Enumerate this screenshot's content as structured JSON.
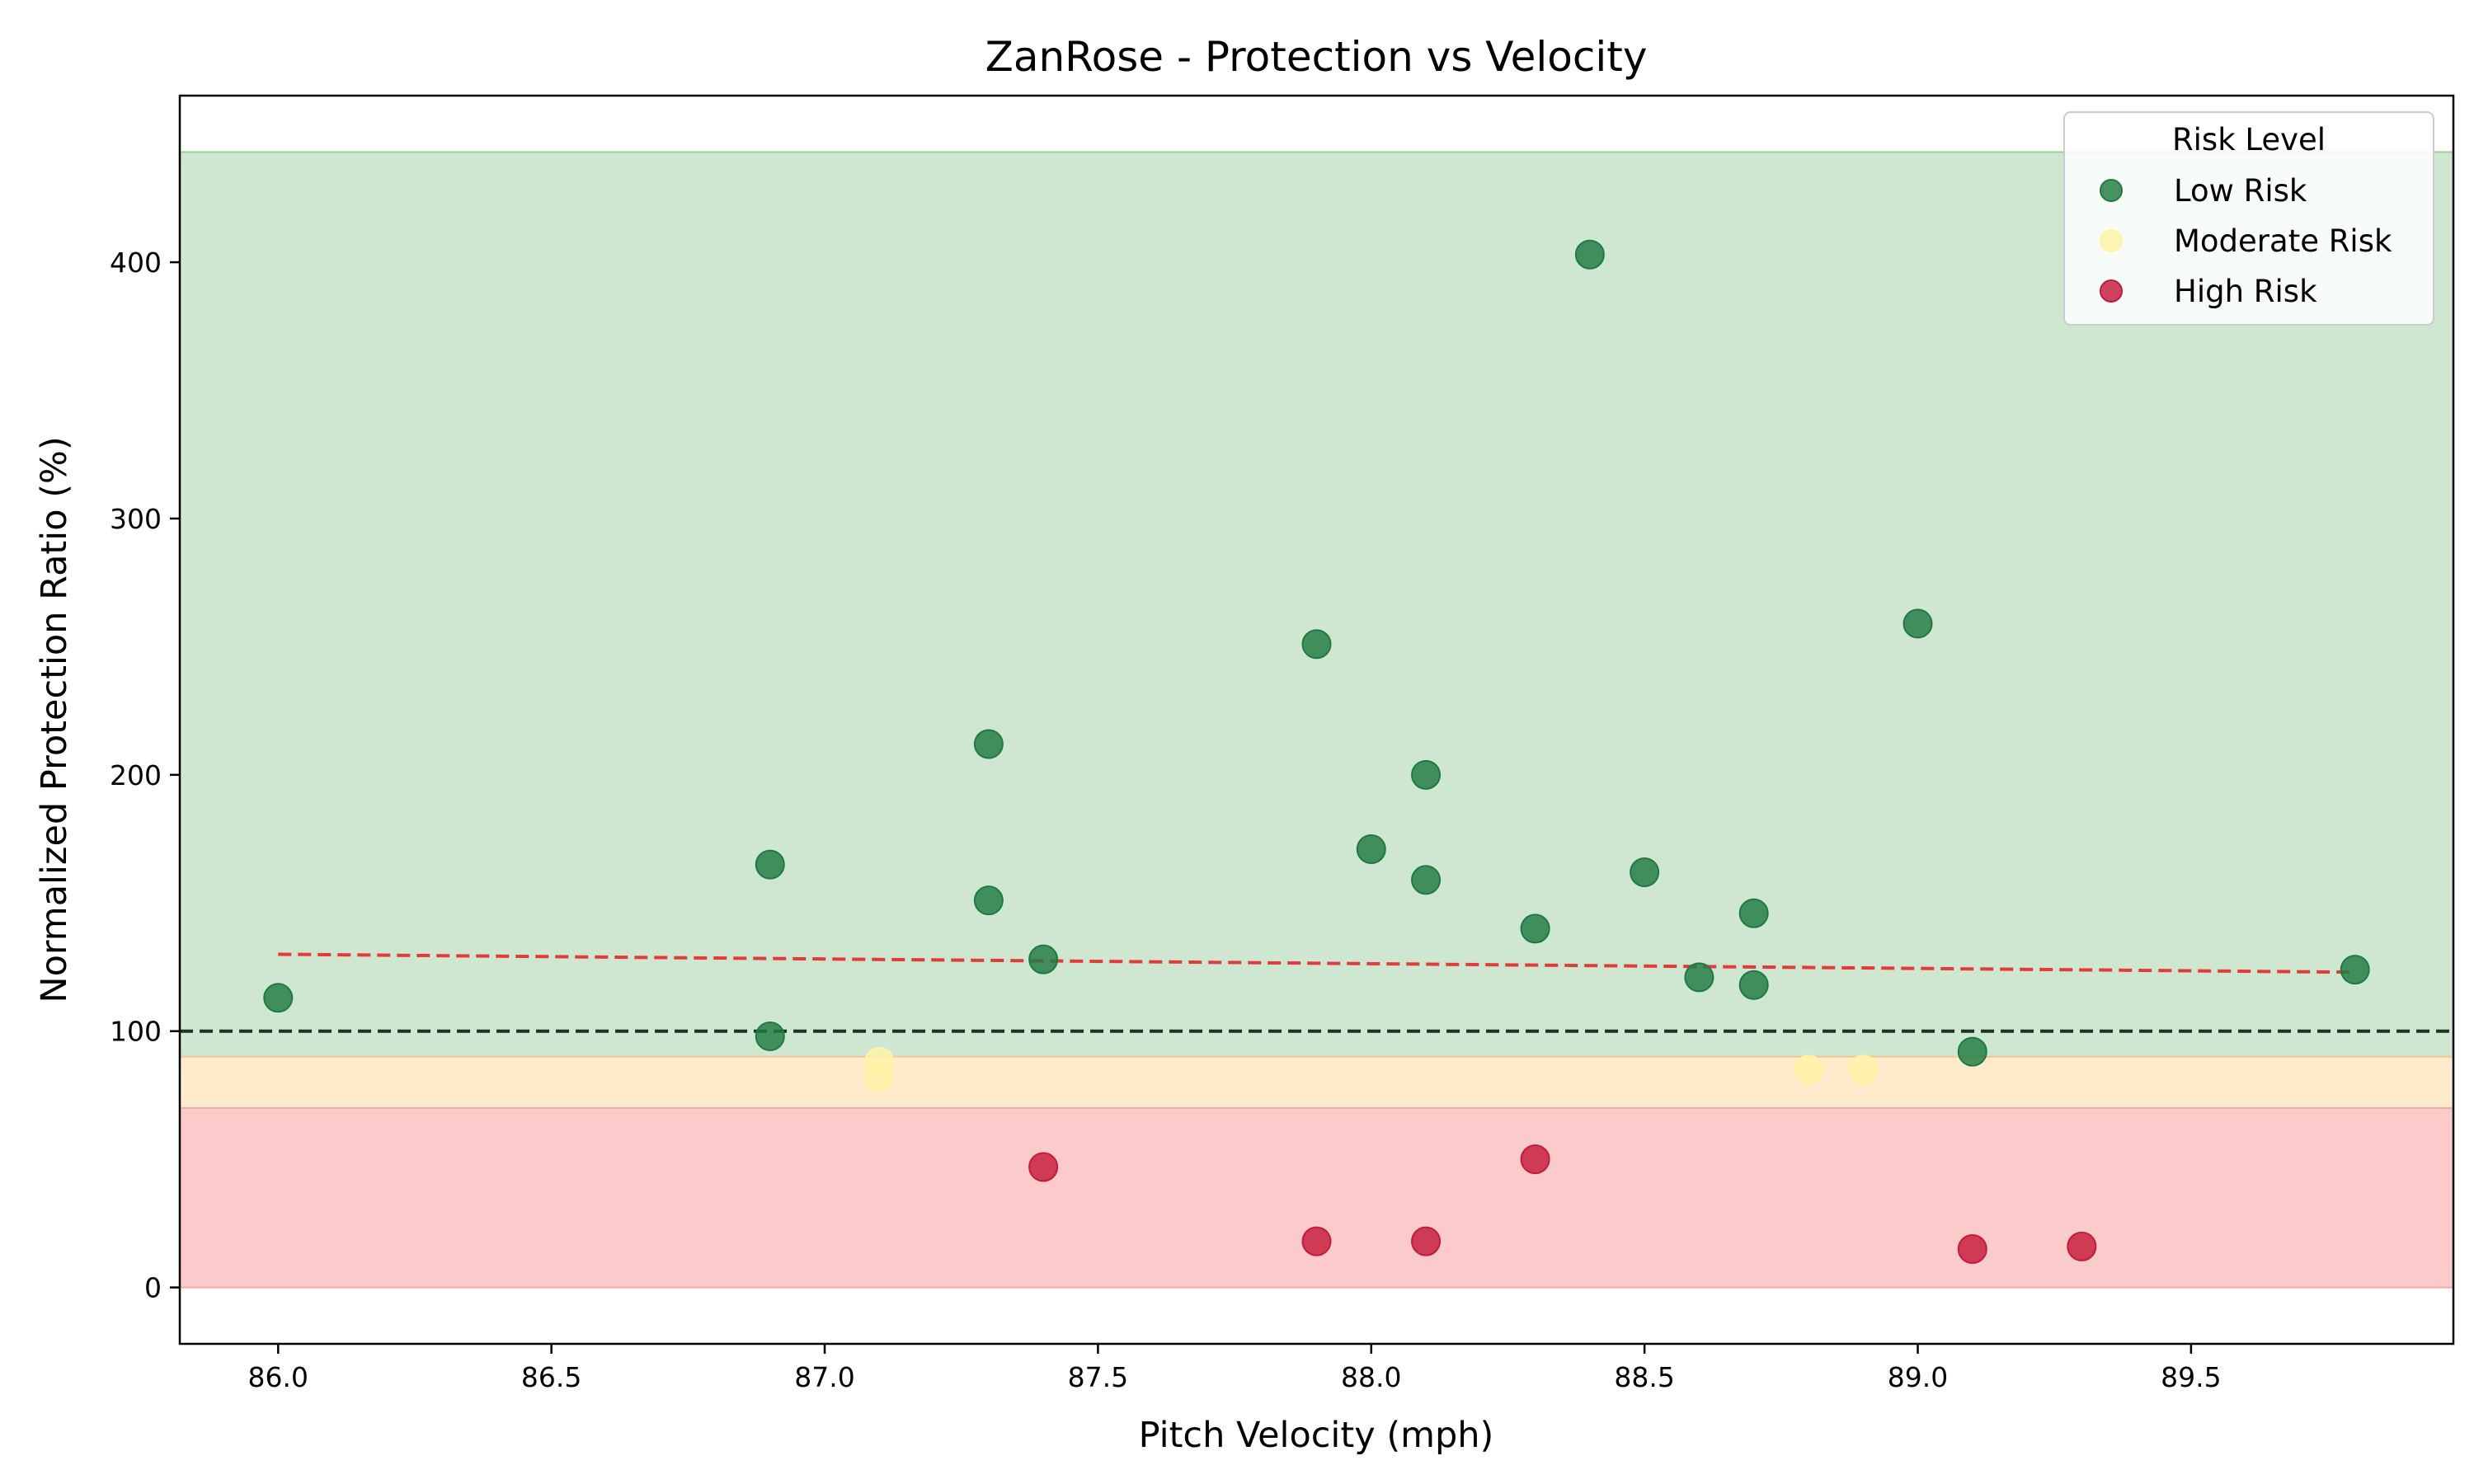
{
  "chart_data": {
    "type": "scatter",
    "title": "ZanRose - Protection vs Velocity",
    "xlabel": "Pitch Velocity (mph)",
    "ylabel": "Normalized Protection Ratio (%)",
    "xlim": [
      85.82,
      89.98
    ],
    "ylim": [
      -22,
      465
    ],
    "x_ticks": [
      86.0,
      86.5,
      87.0,
      87.5,
      88.0,
      88.5,
      89.0,
      89.5
    ],
    "x_tick_labels": [
      "86.0",
      "86.5",
      "87.0",
      "87.5",
      "88.0",
      "88.5",
      "89.0",
      "89.5"
    ],
    "y_ticks": [
      0,
      100,
      200,
      300,
      400
    ],
    "y_tick_labels": [
      "0",
      "100",
      "200",
      "300",
      "400"
    ],
    "grid": false,
    "legend": {
      "title": "Risk Level",
      "placement": "top-right",
      "entries": [
        "Low Risk",
        "Moderate Risk",
        "High Risk"
      ]
    },
    "bands": [
      {
        "from": 90,
        "to": 443,
        "color": "#cfe6d0",
        "edge": "#9fcf99"
      },
      {
        "from": 70,
        "to": 90,
        "color": "#fdebcb",
        "edge": "#f8c690"
      },
      {
        "from": 0,
        "to": 70,
        "color": "#fbcaca",
        "edge": "#f5a8a8"
      }
    ],
    "reference_line": {
      "y": 100,
      "color": "#1e3424"
    },
    "trend_line": {
      "x": [
        86.0,
        89.8
      ],
      "y": [
        130,
        123
      ],
      "color": "#e03c3c"
    },
    "series": [
      {
        "name": "Low Risk",
        "color": "#1f7a42",
        "points": [
          {
            "x": 86.0,
            "y": 113
          },
          {
            "x": 86.9,
            "y": 165
          },
          {
            "x": 86.9,
            "y": 98
          },
          {
            "x": 87.3,
            "y": 212
          },
          {
            "x": 87.3,
            "y": 151
          },
          {
            "x": 87.4,
            "y": 128
          },
          {
            "x": 87.9,
            "y": 251
          },
          {
            "x": 88.0,
            "y": 171
          },
          {
            "x": 88.1,
            "y": 200
          },
          {
            "x": 88.1,
            "y": 159
          },
          {
            "x": 88.3,
            "y": 140
          },
          {
            "x": 88.4,
            "y": 403
          },
          {
            "x": 88.5,
            "y": 162
          },
          {
            "x": 88.6,
            "y": 121
          },
          {
            "x": 88.7,
            "y": 146
          },
          {
            "x": 88.7,
            "y": 118
          },
          {
            "x": 89.0,
            "y": 259
          },
          {
            "x": 89.1,
            "y": 92
          },
          {
            "x": 89.8,
            "y": 124
          }
        ]
      },
      {
        "name": "Moderate Risk",
        "color": "#fff3a6",
        "points": [
          {
            "x": 87.1,
            "y": 88
          },
          {
            "x": 87.1,
            "y": 82
          },
          {
            "x": 88.8,
            "y": 85
          },
          {
            "x": 88.9,
            "y": 85
          }
        ]
      },
      {
        "name": "High Risk",
        "color": "#c41a3b",
        "points": [
          {
            "x": 87.4,
            "y": 47
          },
          {
            "x": 87.9,
            "y": 18
          },
          {
            "x": 88.1,
            "y": 18
          },
          {
            "x": 88.3,
            "y": 50
          },
          {
            "x": 89.1,
            "y": 15
          },
          {
            "x": 89.3,
            "y": 16
          }
        ]
      }
    ]
  }
}
